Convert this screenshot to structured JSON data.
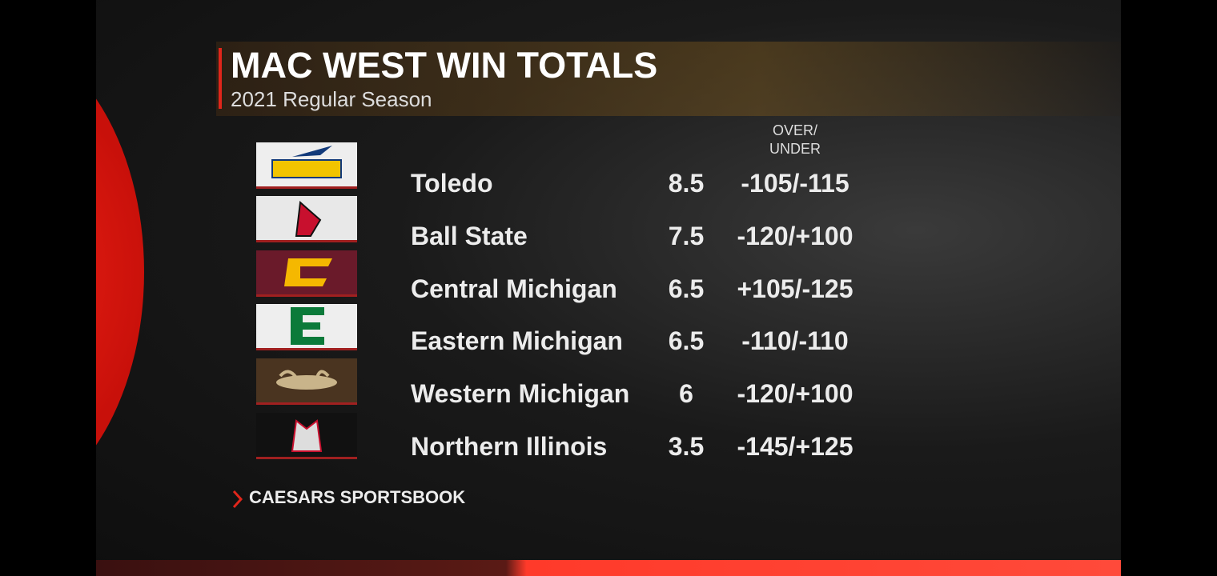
{
  "header": {
    "title": "MAC WEST WIN TOTALS",
    "subtitle": "2021 Regular Season"
  },
  "table": {
    "column_header_lines": [
      "OVER/",
      "UNDER"
    ],
    "rows": [
      [
        "Toledo",
        8.5,
        "-105/-115"
      ],
      [
        "Ball State",
        7.5,
        "-120/+100"
      ],
      [
        "Central Michigan",
        6.5,
        "+105/-125"
      ],
      [
        "Eastern Michigan",
        6.5,
        "-110/-110"
      ],
      [
        "Western Michigan",
        6,
        "-120/+100"
      ],
      [
        "Northern Illinois",
        3.5,
        "-145/+125"
      ]
    ]
  },
  "footer": {
    "source": "CAESARS SPORTSBOOK"
  }
}
